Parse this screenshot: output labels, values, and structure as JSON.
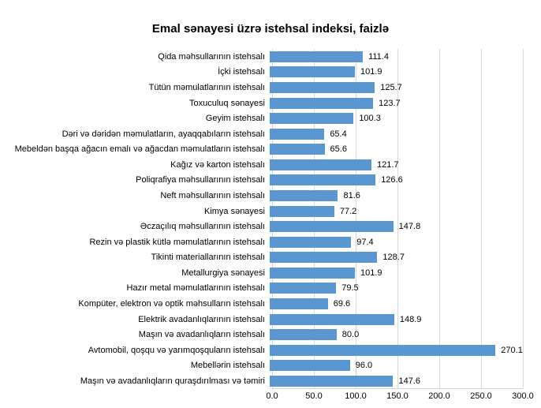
{
  "chart_data": {
    "type": "bar",
    "orientation": "horizontal",
    "title": "Emal sənayesi üzrə istehsal indeksi, faizlə",
    "categories": [
      "Qida məhsullarının istehsalı",
      "İçki istehsalı",
      "Tütün məmulatlarının istehsalı",
      "Toxuculuq sənayesi",
      "Geyim istehsalı",
      "Dəri və dəridən məmulatların, ayaqqabıların istehsalı",
      "Mebeldən başqa ağacın emalı və ağacdan məmulatların istehsalı",
      "Kağız və karton istehsalı",
      "Poliqrafiya məhsullarının istehsalı",
      "Neft məhsullarının istehsalı",
      "Kimya sənayesi",
      "Əczaçılıq məhsullarının istehsalı",
      "Rezin və plastik kütlə məmulatlarının istehsalı",
      "Tikinti materiallarının istehsalı",
      "Metallurgiya sənayesi",
      "Hazır metal məmulatlarının istehsalı",
      "Kompüter, elektron və optik məhsulların istehsalı",
      "Elektrik avadanlıqlarının istehsalı",
      "Maşın və avadanlıqların istehsalı",
      "Avtomobil, qoşqu və yarımqoşquların istehsalı",
      "Mebellərin istehsalı",
      "Maşın və avadanlıqların quraşdırılması və təmiri"
    ],
    "values": [
      111.4,
      101.9,
      125.7,
      123.7,
      100.3,
      65.4,
      65.6,
      121.7,
      126.6,
      81.6,
      77.2,
      147.8,
      97.4,
      128.7,
      101.9,
      79.5,
      69.6,
      148.9,
      80.0,
      270.1,
      96.0,
      147.6
    ],
    "value_labels": [
      "111.4",
      "101.9",
      "125.7",
      "123.7",
      "100.3",
      "65.4",
      "65.6",
      "121.7",
      "126.6",
      "81.6",
      "77.2",
      "147.8",
      "97.4",
      "128.7",
      "101.9",
      "79.5",
      "69.6",
      "148.9",
      "80.0",
      "270.1",
      "96.0",
      "147.6"
    ],
    "xlabel": "",
    "ylabel": "",
    "xlim": [
      0,
      300
    ],
    "x_ticks": [
      "0.0",
      "50.0",
      "100.0",
      "150.0",
      "200.0",
      "250.0",
      "300.0"
    ],
    "grid": true,
    "legend": false,
    "bar_color": "#5a96d0",
    "gridline_color": "#d9d9d9",
    "background_color": "#ffffff",
    "text_color": "#000000"
  }
}
